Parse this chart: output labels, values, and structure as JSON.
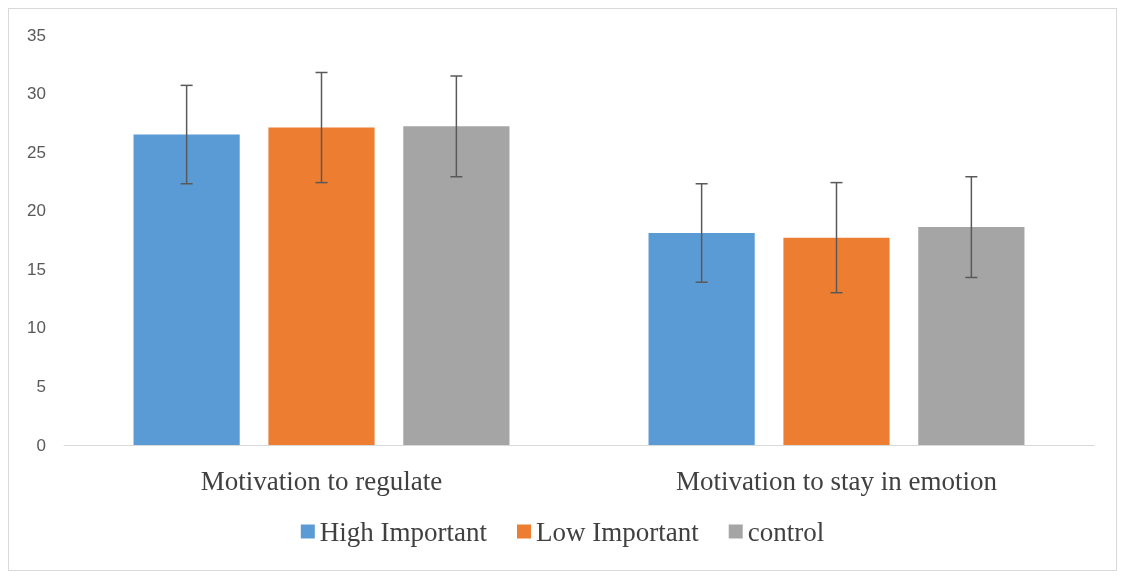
{
  "chart_data": {
    "type": "bar",
    "categories": [
      "Motivation to regulate",
      "Motivation to stay in emotion"
    ],
    "series": [
      {
        "name": "High Important",
        "color": "#5b9bd5",
        "values": [
          26.5,
          18.1
        ],
        "errors": [
          4.2,
          4.2
        ]
      },
      {
        "name": "Low Important",
        "color": "#ed7d31",
        "values": [
          27.1,
          17.7
        ],
        "errors": [
          4.7,
          4.7
        ]
      },
      {
        "name": "control",
        "color": "#a5a5a5",
        "values": [
          27.2,
          18.6
        ],
        "errors": [
          4.3,
          4.3
        ]
      }
    ],
    "ylim": [
      0,
      35
    ],
    "yticks": [
      0,
      5,
      10,
      15,
      20,
      25,
      30,
      35
    ],
    "grid": false,
    "legend": "bottom"
  }
}
